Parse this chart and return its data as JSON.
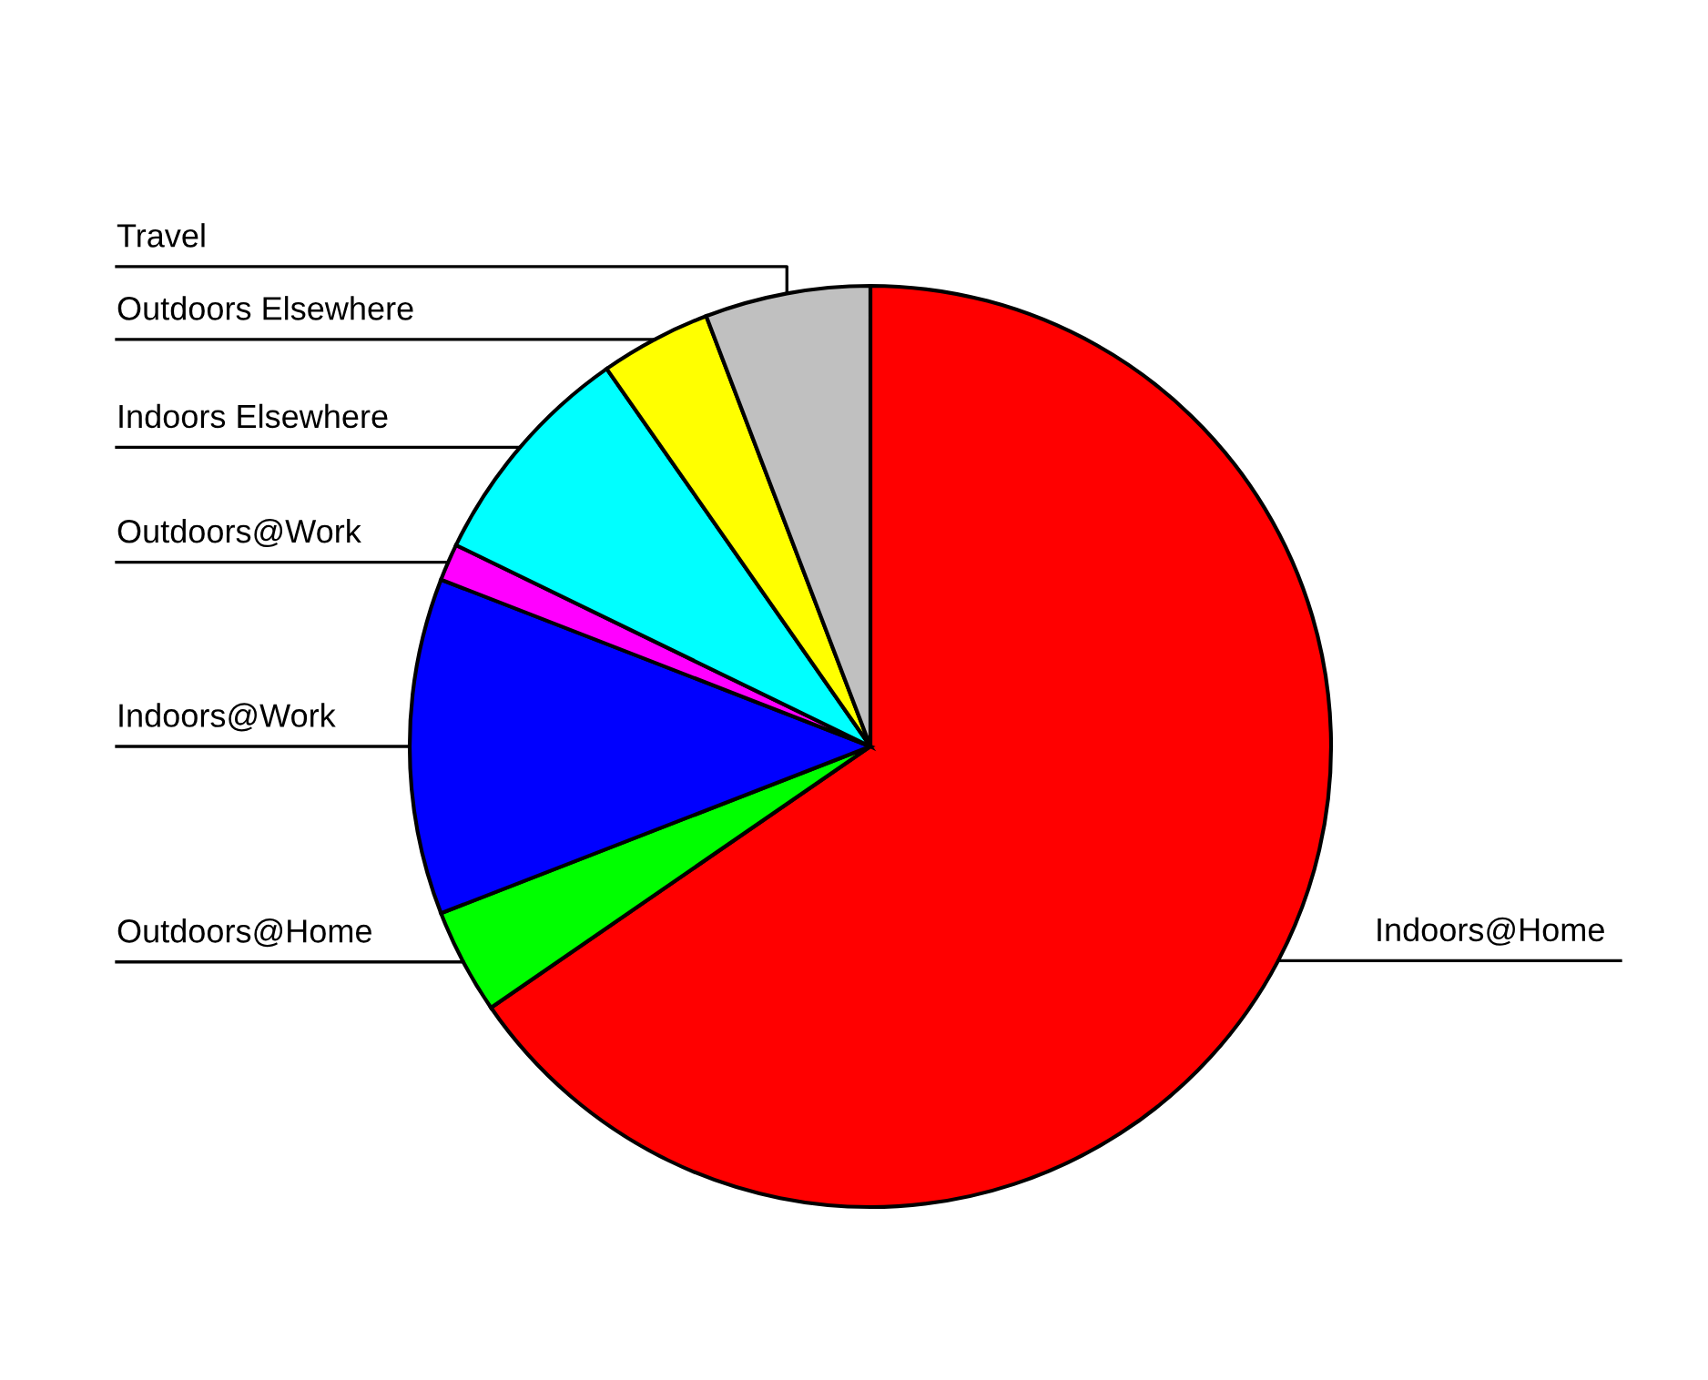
{
  "chart_data": {
    "type": "pie",
    "categories": [
      "Indoors@Home",
      "Outdoors@Home",
      "Indoors@Work",
      "Outdoors@Work",
      "Indoors Elsewhere",
      "Outdoors Elsewhere",
      "Travel"
    ],
    "values": [
      65.4,
      3.7,
      11.8,
      1.3,
      8.1,
      3.9,
      5.8
    ],
    "colors": [
      "#ff0000",
      "#00ff00",
      "#0000ff",
      "#ff00ff",
      "#00ffff",
      "#ffff00",
      "#c0c0c0"
    ]
  }
}
